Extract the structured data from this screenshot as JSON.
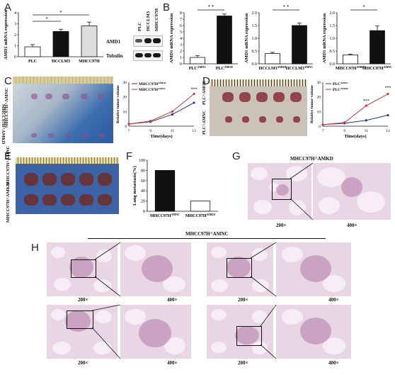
{
  "panels": {
    "A": "A",
    "B": "B",
    "C": "C",
    "D": "D",
    "E": "E",
    "F": "F",
    "G": "G",
    "H": "H"
  },
  "sig": {
    "two": "* *",
    "one": "*"
  },
  "panel_a": {
    "ylabel": "AMD1 mRNA expression",
    "categories": [
      "PLC",
      "HCCLM3",
      "MHCC97H"
    ],
    "values": [
      0.9,
      2.3,
      2.8
    ],
    "errors": [
      0.2,
      0.2,
      0.35
    ],
    "yticks": [
      "0",
      "1",
      "2",
      "3",
      "4"
    ],
    "ylim": [
      0,
      4
    ],
    "fills": [
      "#ffffff",
      "#111111",
      "#dddddd"
    ]
  },
  "blot": {
    "lanes": [
      "PLC",
      "HCCLM3",
      "MHCC97H"
    ],
    "rows": [
      "AMD1",
      "Tubulin"
    ]
  },
  "panel_b": [
    {
      "ylabel": "AMD1 mRNA expression",
      "categories": [
        "PLC^AMNC",
        "PLC^AMOE"
      ],
      "values": [
        1.0,
        7.5
      ],
      "errors": [
        0.3,
        0.3
      ],
      "yticks": [
        "0",
        "1",
        "2",
        "3",
        "4",
        "5",
        "6",
        "7",
        "8"
      ],
      "ylim": [
        0,
        8
      ],
      "sig": "* *"
    },
    {
      "ylabel": "AMD1 mRNA expression",
      "categories": [
        "HCCLM3^AMKD",
        "HCCLM3^AMNC"
      ],
      "values": [
        0.4,
        1.5
      ],
      "errors": [
        0.05,
        0.1
      ],
      "yticks": [
        "0.0",
        "0.5",
        "1.0",
        "1.5",
        "2.0"
      ],
      "ylim": [
        0,
        2
      ],
      "sig": "* *"
    },
    {
      "ylabel": "AMD1 mRNA expression",
      "categories": [
        "MHCC97H^AMKD",
        "MHCC97H^AMNC"
      ],
      "values": [
        0.35,
        1.3
      ],
      "errors": [
        0.03,
        0.18
      ],
      "yticks": [
        "0.0",
        "0.5",
        "1.0",
        "1.5",
        "2.0"
      ],
      "ylim": [
        0,
        2
      ],
      "sig": "*"
    }
  ],
  "photo_c": {
    "top_label": "MHCC97H^AMNC",
    "bottom_label": "MHCC97H^AMKD"
  },
  "photo_d": {
    "top_label": "PLC^AMOE",
    "bottom_label": "PLC^AMNC"
  },
  "photo_e": {
    "top_label": "MHCC97H^AMNC",
    "bottom_label": "MHCC97H^AMKD"
  },
  "chart_data": [
    {
      "type": "line",
      "panel": "C",
      "x": [
        7,
        9,
        11,
        13
      ],
      "series": [
        {
          "name": "MHCC97H^AMKD",
          "values": [
            1.5,
            3,
            8,
            16
          ],
          "color": "#223399"
        },
        {
          "name": "MHCC97H^AMNC",
          "values": [
            1.5,
            3.5,
            10,
            22
          ],
          "color": "#d93030"
        }
      ],
      "xlabel": "Time(days)",
      "ylabel": "Relative tumor volume",
      "ylim": [
        0,
        30
      ],
      "yticks": [
        "0",
        "10",
        "20",
        "30"
      ],
      "xticks": [
        "7",
        "9",
        "11",
        "13"
      ],
      "annotations": [
        "***"
      ]
    },
    {
      "type": "line",
      "panel": "D",
      "x": [
        7,
        9,
        11,
        13
      ],
      "series": [
        {
          "name": "PLC^AMNC",
          "values": [
            1,
            2,
            4,
            7.5
          ],
          "color": "#223399"
        },
        {
          "name": "PLC^AMOE",
          "values": [
            1,
            2.5,
            14,
            22
          ],
          "color": "#d93030"
        }
      ],
      "xlabel": "Time(days)",
      "ylabel": "Relative tumor volume",
      "ylim": [
        0,
        30
      ],
      "yticks": [
        "0",
        "10",
        "20",
        "30"
      ],
      "xticks": [
        "7",
        "9",
        "11",
        "13"
      ],
      "annotations": [
        "***",
        "***"
      ]
    },
    {
      "type": "bar",
      "panel": "F",
      "categories": [
        "MHCC97H^AMNC",
        "MHCC97H^AMKD"
      ],
      "values": [
        80,
        20
      ],
      "fills": [
        "#111111",
        "#ffffff"
      ],
      "ylabel": "Lung metastasis(%)",
      "ylim": [
        0,
        100
      ],
      "yticks": [
        "0",
        "20",
        "40",
        "60",
        "80",
        "100"
      ]
    }
  ],
  "panel_g": {
    "title": "MHCC97H^AMKD",
    "mag_low": "200×",
    "mag_high": "400×"
  },
  "panel_h": {
    "title": "MHCC97H^AMNC",
    "mag_low": "200×",
    "mag_high": "400×"
  }
}
